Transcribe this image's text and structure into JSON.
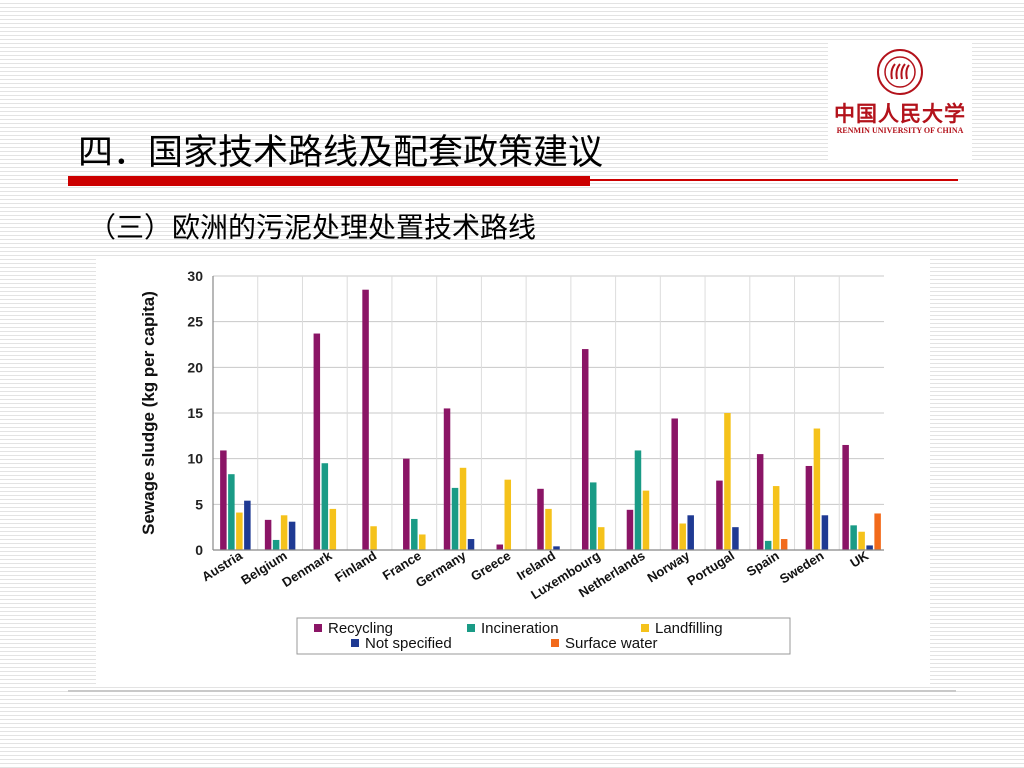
{
  "logo": {
    "name_cn": "中国人民大学",
    "name_en": "RENMIN UNIVERSITY OF CHINA",
    "color": "#b3121b"
  },
  "slide": {
    "title": "四．国家技术路线及配套政策建议",
    "subtitle": "（三）欧洲的污泥处理处置技术路线",
    "accent_color": "#cc0000"
  },
  "chart_data": {
    "type": "bar",
    "ylabel": "Sewage sludge (kg per capita)",
    "ylim": [
      0,
      30
    ],
    "yticks": [
      0,
      5,
      10,
      15,
      20,
      25,
      30
    ],
    "grid": true,
    "legend_position": "bottom",
    "categories": [
      "Austria",
      "Belgium",
      "Denmark",
      "Finland",
      "France",
      "Germany",
      "Greece",
      "Ireland",
      "Luxembourg",
      "Netherlands",
      "Norway",
      "Portugal",
      "Spain",
      "Sweden",
      "UK"
    ],
    "series": [
      {
        "name": "Recycling",
        "color": "#8b1566",
        "values": [
          10.9,
          3.3,
          23.7,
          28.5,
          10.0,
          15.5,
          0.6,
          6.7,
          22.0,
          4.4,
          14.4,
          7.6,
          10.5,
          9.2,
          11.5
        ]
      },
      {
        "name": "Incineration",
        "color": "#1a9b86",
        "values": [
          8.3,
          1.1,
          9.5,
          0,
          3.4,
          6.8,
          0,
          0,
          7.4,
          10.9,
          0,
          0,
          1.0,
          0,
          2.7
        ]
      },
      {
        "name": "Landfilling",
        "color": "#f5c21b",
        "values": [
          4.1,
          3.8,
          4.5,
          2.6,
          1.7,
          9.0,
          7.7,
          4.5,
          2.5,
          6.5,
          2.9,
          15.0,
          7.0,
          13.3,
          2.0
        ]
      },
      {
        "name": "Not specified",
        "color": "#1f3a93",
        "values": [
          5.4,
          3.1,
          0,
          0,
          0,
          1.2,
          0,
          0.4,
          0,
          0,
          3.8,
          2.5,
          0,
          3.8,
          0.5
        ]
      },
      {
        "name": "Surface water",
        "color": "#f26a1b",
        "values": [
          0,
          0,
          0,
          0,
          0,
          0,
          0,
          0,
          0,
          0,
          0,
          0,
          1.2,
          0,
          4.0
        ]
      }
    ]
  }
}
